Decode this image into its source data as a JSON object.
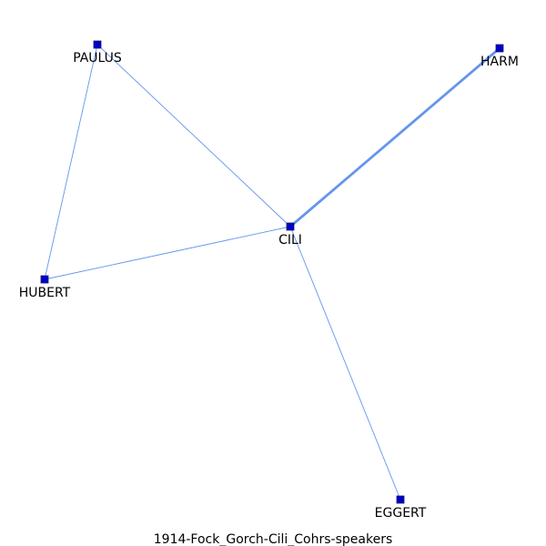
{
  "graph": {
    "caption": "1914-Fock_Gorch-Cili_Cohrs-speakers",
    "nodes": [
      {
        "id": "PAULUS",
        "label": "PAULUS"
      },
      {
        "id": "HARM",
        "label": "HARM"
      },
      {
        "id": "CILI",
        "label": "CILI"
      },
      {
        "id": "HUBERT",
        "label": "HUBERT"
      },
      {
        "id": "EGGERT",
        "label": "EGGERT"
      }
    ],
    "edges": [
      {
        "source": "CILI",
        "target": "HARM",
        "weight": 3
      },
      {
        "source": "CILI",
        "target": "PAULUS",
        "weight": 1
      },
      {
        "source": "CILI",
        "target": "HUBERT",
        "weight": 1
      },
      {
        "source": "CILI",
        "target": "EGGERT",
        "weight": 1
      },
      {
        "source": "PAULUS",
        "target": "HUBERT",
        "weight": 1
      }
    ],
    "edge_color": "#6495ed",
    "node_color": "#0000cd"
  }
}
